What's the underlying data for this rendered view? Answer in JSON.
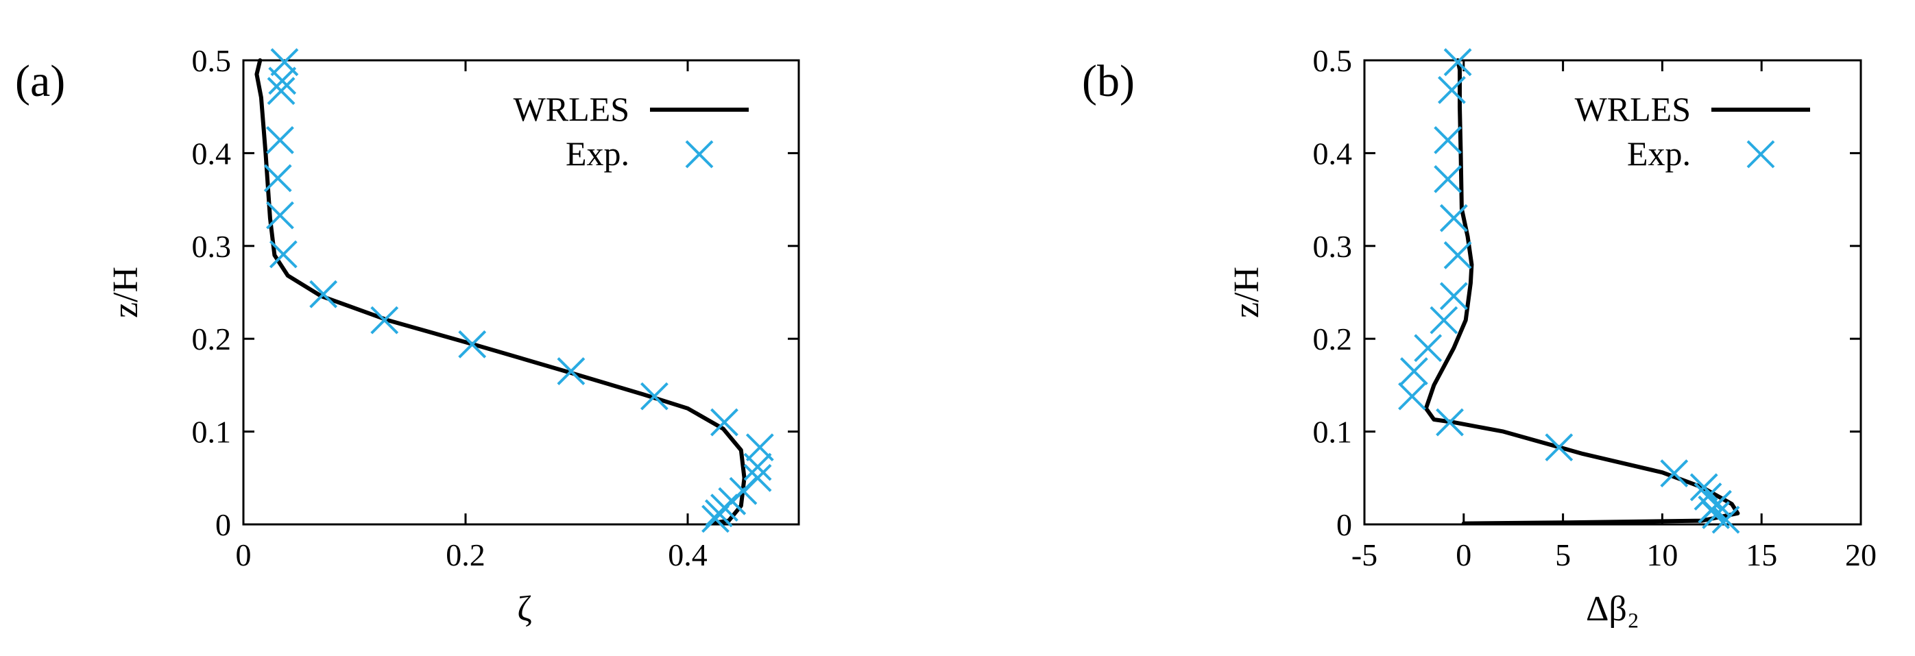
{
  "chart_data": [
    {
      "panel": "(a)",
      "type": "line",
      "title": "",
      "xlabel": "ζ",
      "ylabel": "z/H",
      "xlim": [
        0,
        0.5
      ],
      "ylim": [
        0,
        0.5
      ],
      "xticks": [
        "0",
        "0.2",
        "0.4"
      ],
      "yticks": [
        "0",
        "0.1",
        "0.2",
        "0.3",
        "0.4",
        "0.5"
      ],
      "grid": false,
      "legend_position": "top-right",
      "series": [
        {
          "name": "WRLES",
          "type": "line",
          "color": "#000000",
          "points": [
            [
              0.42,
              0.001
            ],
            [
              0.437,
              0.004
            ],
            [
              0.448,
              0.02
            ],
            [
              0.451,
              0.05
            ],
            [
              0.448,
              0.08
            ],
            [
              0.432,
              0.103
            ],
            [
              0.4,
              0.125
            ],
            [
              0.36,
              0.14
            ],
            [
              0.29,
              0.165
            ],
            [
              0.21,
              0.193
            ],
            [
              0.13,
              0.22
            ],
            [
              0.07,
              0.246
            ],
            [
              0.04,
              0.268
            ],
            [
              0.028,
              0.29
            ],
            [
              0.024,
              0.33
            ],
            [
              0.02,
              0.4
            ],
            [
              0.016,
              0.46
            ],
            [
              0.012,
              0.485
            ],
            [
              0.015,
              0.5
            ]
          ]
        },
        {
          "name": "Exp.",
          "type": "scatter",
          "marker": "x",
          "color": "#29abe2",
          "points": [
            [
              0.037,
              0.498
            ],
            [
              0.035,
              0.478
            ],
            [
              0.034,
              0.467
            ],
            [
              0.033,
              0.414
            ],
            [
              0.031,
              0.373
            ],
            [
              0.033,
              0.333
            ],
            [
              0.036,
              0.291
            ],
            [
              0.072,
              0.248
            ],
            [
              0.127,
              0.22
            ],
            [
              0.206,
              0.194
            ],
            [
              0.295,
              0.165
            ],
            [
              0.37,
              0.138
            ],
            [
              0.433,
              0.11
            ],
            [
              0.465,
              0.083
            ],
            [
              0.463,
              0.062
            ],
            [
              0.463,
              0.05
            ],
            [
              0.45,
              0.036
            ],
            [
              0.44,
              0.025
            ],
            [
              0.433,
              0.018
            ],
            [
              0.428,
              0.012
            ],
            [
              0.425,
              0.006
            ]
          ]
        }
      ]
    },
    {
      "panel": "(b)",
      "type": "line",
      "title": "",
      "xlabel": "Δβ₂",
      "ylabel": "z/H",
      "xlim": [
        -5,
        20
      ],
      "ylim": [
        0,
        0.5
      ],
      "xticks": [
        "-5",
        "0",
        "5",
        "10",
        "15",
        "20"
      ],
      "yticks": [
        "0",
        "0.1",
        "0.2",
        "0.3",
        "0.4",
        "0.5"
      ],
      "grid": false,
      "legend_position": "top-right",
      "series": [
        {
          "name": "WRLES",
          "type": "line",
          "color": "#000000",
          "points": [
            [
              0,
              0.001
            ],
            [
              5,
              0.002
            ],
            [
              12,
              0.004
            ],
            [
              13.8,
              0.012
            ],
            [
              13.5,
              0.022
            ],
            [
              12,
              0.04
            ],
            [
              10,
              0.056
            ],
            [
              6,
              0.076
            ],
            [
              2,
              0.1
            ],
            [
              -0.5,
              0.11
            ],
            [
              -1.5,
              0.113
            ],
            [
              -1.9,
              0.125
            ],
            [
              -1.5,
              0.15
            ],
            [
              -0.5,
              0.19
            ],
            [
              0.1,
              0.22
            ],
            [
              0.35,
              0.26
            ],
            [
              0.4,
              0.28
            ],
            [
              0.2,
              0.31
            ],
            [
              -0.1,
              0.34
            ],
            [
              -0.15,
              0.4
            ],
            [
              -0.2,
              0.45
            ],
            [
              -0.2,
              0.49
            ],
            [
              -0.3,
              0.5
            ]
          ]
        },
        {
          "name": "Exp.",
          "type": "scatter",
          "marker": "x",
          "color": "#29abe2",
          "points": [
            [
              -0.3,
              0.498
            ],
            [
              -0.6,
              0.468
            ],
            [
              -0.8,
              0.414
            ],
            [
              -0.8,
              0.372
            ],
            [
              -0.5,
              0.33
            ],
            [
              -0.3,
              0.29
            ],
            [
              -0.5,
              0.246
            ],
            [
              -1.0,
              0.22
            ],
            [
              -1.8,
              0.19
            ],
            [
              -2.5,
              0.165
            ],
            [
              -2.6,
              0.138
            ],
            [
              -0.7,
              0.11
            ],
            [
              4.8,
              0.083
            ],
            [
              10.6,
              0.055
            ],
            [
              12.1,
              0.04
            ],
            [
              12.3,
              0.03
            ],
            [
              12.8,
              0.022
            ],
            [
              12.5,
              0.016
            ],
            [
              12.7,
              0.01
            ],
            [
              13.2,
              0.005
            ]
          ]
        }
      ]
    }
  ]
}
